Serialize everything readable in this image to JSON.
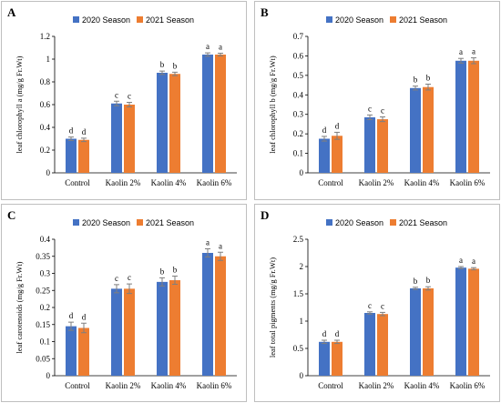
{
  "colors": {
    "season_2020": "#4472C4",
    "season_2021": "#ED7D31",
    "letters_2021": "#C00000",
    "error_bar": "#7f7f7f"
  },
  "chart_data": [
    {
      "panel": "A",
      "type": "bar",
      "categories": [
        "Control",
        "Kaolin 2%",
        "Kaolin  4%",
        "Kaolin  6%"
      ],
      "ylabel": "leaf chlorophyll a (mg/g Fr.Wt)",
      "ylim": [
        0,
        1.2
      ],
      "yticks": [
        "0",
        "0.2",
        "0.4",
        "0.6",
        "0.8",
        "1",
        "1.2"
      ],
      "grid": false,
      "legend_position": "top",
      "series": [
        {
          "name": "2020 Season",
          "values": [
            0.3,
            0.61,
            0.88,
            1.04
          ],
          "errors": [
            0.015,
            0.02,
            0.015,
            0.015
          ],
          "letters": [
            "d",
            "c",
            "b",
            "a"
          ]
        },
        {
          "name": "2021 Season",
          "values": [
            0.29,
            0.6,
            0.87,
            1.04
          ],
          "errors": [
            0.015,
            0.02,
            0.015,
            0.012
          ],
          "letters": [
            "d",
            "c",
            "b",
            "a"
          ]
        }
      ]
    },
    {
      "panel": "B",
      "type": "bar",
      "categories": [
        "Control",
        "Kaolin 2%",
        "Kaolin  4%",
        "Kaolin  6%"
      ],
      "ylabel": "leaf chlorophyll b (mg/g Fr.Wt)",
      "ylim": [
        0,
        0.7
      ],
      "yticks": [
        "0",
        "0.1",
        "0.2",
        "0.3",
        "0.4",
        "0.5",
        "0.6",
        "0.7"
      ],
      "grid": false,
      "legend_position": "top",
      "series": [
        {
          "name": "2020 Season",
          "values": [
            0.175,
            0.285,
            0.435,
            0.575
          ],
          "errors": [
            0.012,
            0.012,
            0.01,
            0.012
          ],
          "letters": [
            "d",
            "c",
            "b",
            "a"
          ]
        },
        {
          "name": "2021 Season",
          "values": [
            0.19,
            0.275,
            0.44,
            0.575
          ],
          "errors": [
            0.018,
            0.012,
            0.015,
            0.015
          ],
          "letters": [
            "d",
            "c",
            "b",
            "a"
          ]
        }
      ]
    },
    {
      "panel": "C",
      "type": "bar",
      "categories": [
        "Control",
        "Kaolin 2%",
        "Kaolin  4%",
        "Kaolin  6%"
      ],
      "ylabel": "leaf carotenoids (mg/g Fr.Wt)",
      "ylim": [
        0,
        0.4
      ],
      "yticks": [
        "0",
        "0.05",
        "0.1",
        "0.15",
        "0.2",
        "0.25",
        "0.3",
        "0.35",
        "0.4"
      ],
      "grid": false,
      "legend_position": "top",
      "series": [
        {
          "name": "2020 Season",
          "values": [
            0.145,
            0.255,
            0.275,
            0.36
          ],
          "errors": [
            0.012,
            0.012,
            0.012,
            0.012
          ],
          "letters": [
            "d",
            "c",
            "b",
            "a"
          ]
        },
        {
          "name": "2021 Season",
          "values": [
            0.14,
            0.255,
            0.28,
            0.35
          ],
          "errors": [
            0.014,
            0.014,
            0.012,
            0.012
          ],
          "letters": [
            "d",
            "c",
            "b",
            "a"
          ]
        }
      ]
    },
    {
      "panel": "D",
      "type": "bar",
      "categories": [
        "Control",
        "Kaolin 2%",
        "Kaolin  4%",
        "Kaolin  6%"
      ],
      "ylabel": "leaf total pigments (mg/g Fr.Wt)",
      "ylim": [
        0,
        2.5
      ],
      "yticks": [
        "0",
        "0.5",
        "1",
        "1.5",
        "2",
        "2.5"
      ],
      "grid": false,
      "legend_position": "top",
      "series": [
        {
          "name": "2020 Season",
          "values": [
            0.62,
            1.15,
            1.6,
            1.98
          ],
          "errors": [
            0.03,
            0.02,
            0.02,
            0.02
          ],
          "letters": [
            "d",
            "c",
            "b",
            "a"
          ]
        },
        {
          "name": "2021 Season",
          "values": [
            0.62,
            1.13,
            1.6,
            1.96
          ],
          "errors": [
            0.03,
            0.03,
            0.03,
            0.02
          ],
          "letters": [
            "d",
            "c",
            "b",
            "a"
          ]
        }
      ]
    }
  ]
}
